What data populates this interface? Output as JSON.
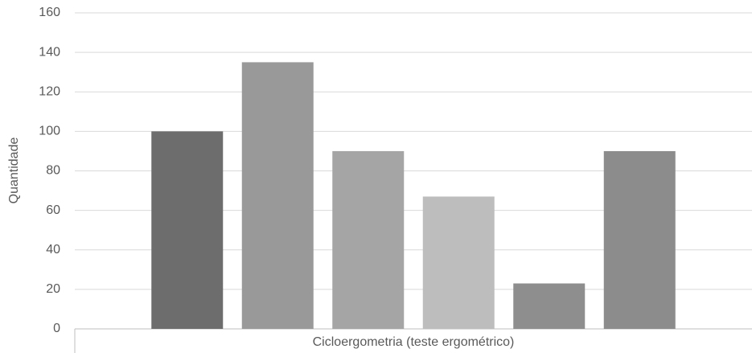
{
  "chart_data": {
    "type": "bar",
    "y_label": "Quantidade",
    "categories": [
      "Cicloergometria (teste ergométrico)"
    ],
    "series": [
      {
        "color": "#6d6d6d",
        "values": [
          100
        ]
      },
      {
        "color": "#999999",
        "values": [
          135
        ]
      },
      {
        "color": "#a5a5a5",
        "values": [
          90
        ]
      },
      {
        "color": "#bdbdbd",
        "values": [
          67
        ]
      },
      {
        "color": "#8e8e8e",
        "values": [
          23
        ]
      },
      {
        "color": "#8c8c8c",
        "values": [
          90
        ]
      }
    ],
    "ylim": [
      0,
      160
    ],
    "yticks": [
      0,
      20,
      40,
      60,
      80,
      100,
      120,
      140,
      160
    ],
    "grid": true
  }
}
